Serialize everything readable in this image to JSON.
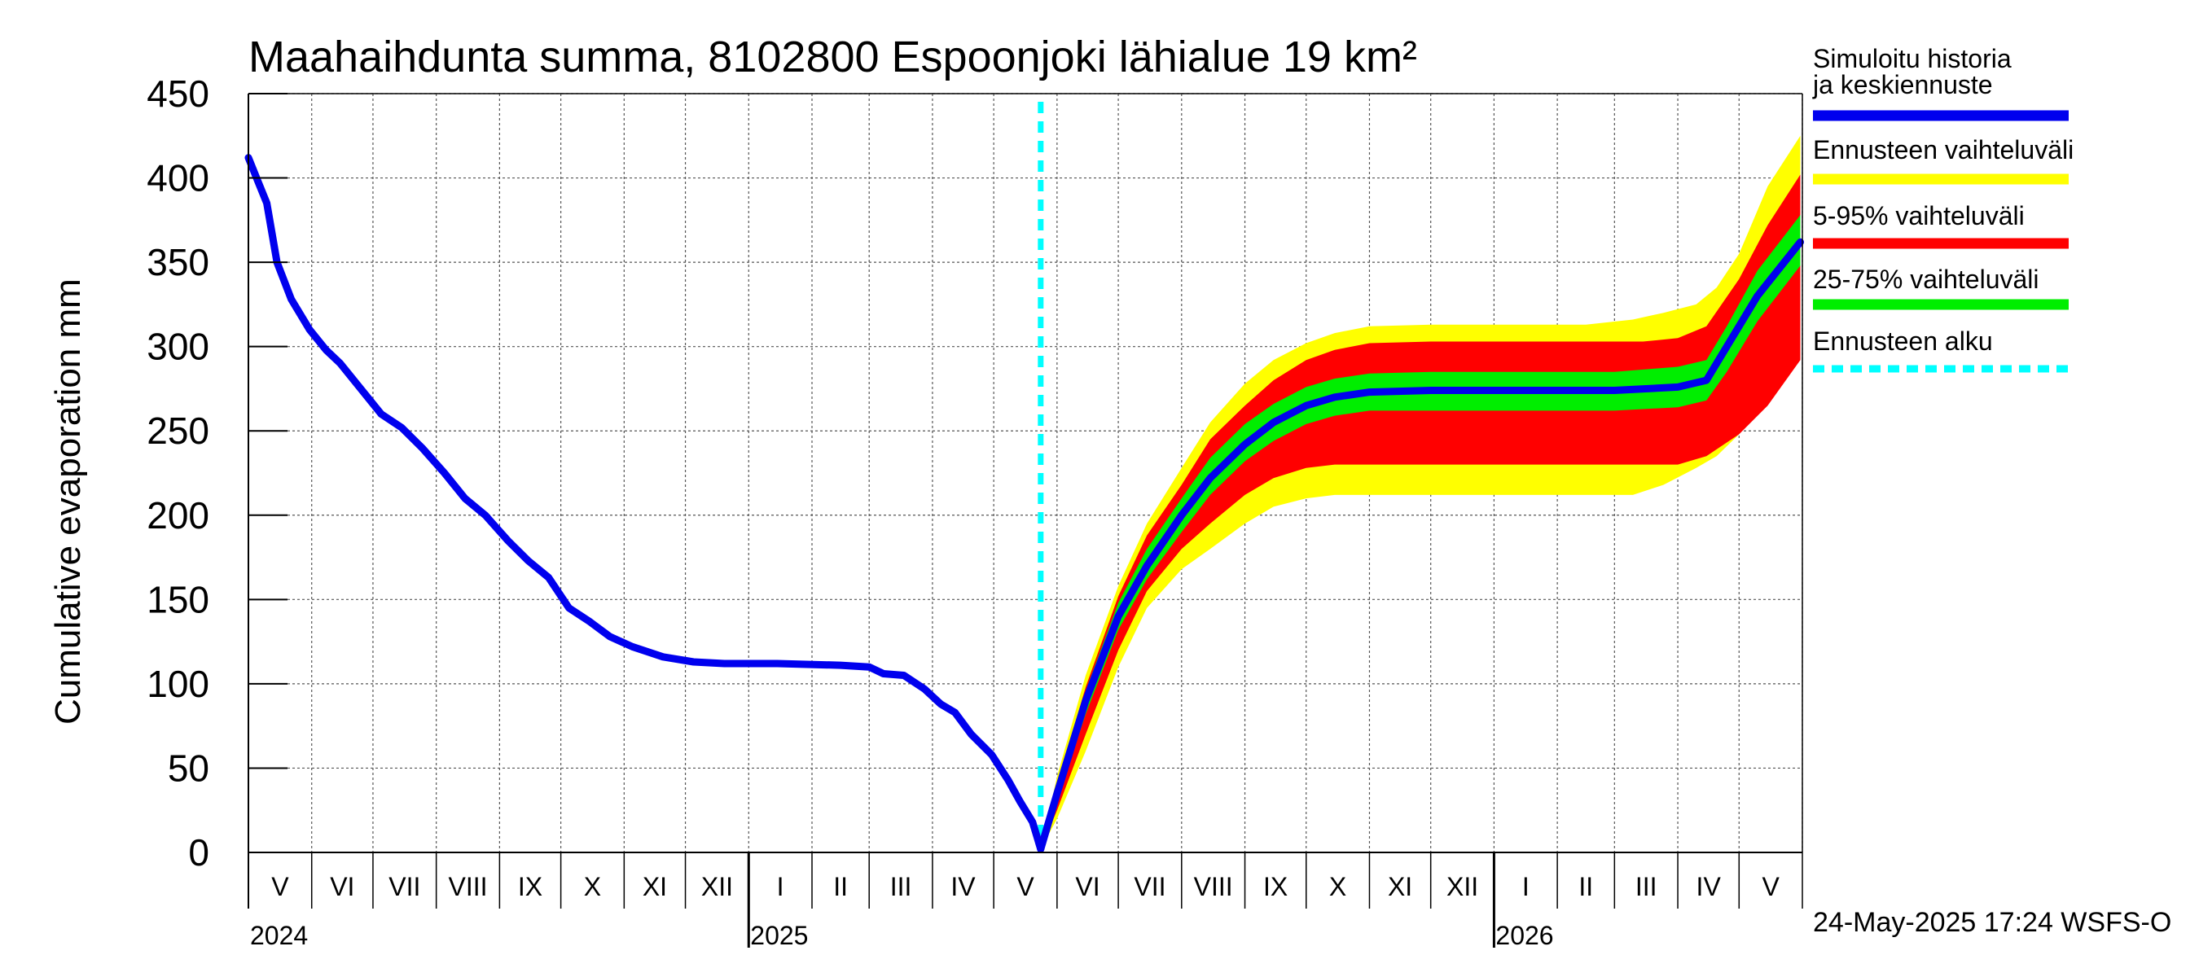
{
  "chart_data": {
    "type": "line",
    "title": "Maahaihdunta summa, 8102800 Espoonjoki lähialue 19 km²",
    "ylabel": "Cumulative evaporation   mm",
    "ylim": [
      0,
      450
    ],
    "yticks": [
      "0",
      "50",
      "100",
      "150",
      "200",
      "250",
      "300",
      "350",
      "400",
      "450"
    ],
    "xlim": [
      "2024-05-01",
      "2026-05-31"
    ],
    "months": [
      "V",
      "VI",
      "VII",
      "VIII",
      "IX",
      "X",
      "XI",
      "XII",
      "I",
      "II",
      "III",
      "IV",
      "V",
      "VI",
      "VII",
      "VIII",
      "IX",
      "X",
      "XI",
      "XII",
      "I",
      "II",
      "III",
      "IV",
      "V"
    ],
    "years": [
      "2024",
      "2025",
      "2026"
    ],
    "forecast_start": "2025-05-24",
    "legend": [
      {
        "label": "Simuloitu historia ja keskiennuste",
        "color": "#0000ee"
      },
      {
        "label": "Ennusteen vaihteluväli",
        "color": "#ffff00"
      },
      {
        "label": "5-95% vaihteluväli",
        "color": "#ff0000"
      },
      {
        "label": "25-75% vaihteluväli",
        "color": "#00ee00"
      },
      {
        "label": "Ennusteen alku",
        "color": "#00ffff"
      }
    ],
    "legend_position": "right",
    "grid": true,
    "series": [
      {
        "name": "Simuloitu historia ja keskiennuste",
        "points": [
          [
            "2024-05-01",
            412
          ],
          [
            "2024-05-05",
            400
          ],
          [
            "2024-05-10",
            385
          ],
          [
            "2024-05-15",
            350
          ],
          [
            "2024-05-22",
            328
          ],
          [
            "2024-05-31",
            310
          ],
          [
            "2024-06-08",
            298
          ],
          [
            "2024-06-15",
            290
          ],
          [
            "2024-06-25",
            275
          ],
          [
            "2024-07-05",
            260
          ],
          [
            "2024-07-15",
            252
          ],
          [
            "2024-07-25",
            240
          ],
          [
            "2024-08-05",
            225
          ],
          [
            "2024-08-15",
            210
          ],
          [
            "2024-08-25",
            200
          ],
          [
            "2024-09-05",
            185
          ],
          [
            "2024-09-15",
            173
          ],
          [
            "2024-09-25",
            163
          ],
          [
            "2024-10-05",
            145
          ],
          [
            "2024-10-15",
            137
          ],
          [
            "2024-10-25",
            128
          ],
          [
            "2024-11-05",
            122
          ],
          [
            "2024-11-20",
            116
          ],
          [
            "2024-12-05",
            113
          ],
          [
            "2024-12-20",
            112
          ],
          [
            "2025-01-15",
            112
          ],
          [
            "2025-02-15",
            111
          ],
          [
            "2025-03-01",
            110
          ],
          [
            "2025-03-08",
            106
          ],
          [
            "2025-03-18",
            105
          ],
          [
            "2025-03-28",
            97
          ],
          [
            "2025-04-05",
            88
          ],
          [
            "2025-04-12",
            83
          ],
          [
            "2025-04-20",
            70
          ],
          [
            "2025-04-30",
            58
          ],
          [
            "2025-05-08",
            43
          ],
          [
            "2025-05-14",
            30
          ],
          [
            "2025-05-20",
            18
          ],
          [
            "2025-05-24",
            2
          ]
        ]
      },
      {
        "name": "Keskiennuste",
        "points": [
          [
            "2025-05-24",
            2
          ],
          [
            "2025-06-01",
            35
          ],
          [
            "2025-06-15",
            90
          ],
          [
            "2025-07-01",
            140
          ],
          [
            "2025-07-15",
            170
          ],
          [
            "2025-08-01",
            200
          ],
          [
            "2025-08-15",
            222
          ],
          [
            "2025-09-01",
            242
          ],
          [
            "2025-09-15",
            255
          ],
          [
            "2025-10-01",
            265
          ],
          [
            "2025-10-15",
            270
          ],
          [
            "2025-11-01",
            273
          ],
          [
            "2025-12-01",
            274
          ],
          [
            "2026-01-01",
            274
          ],
          [
            "2026-03-01",
            274
          ],
          [
            "2026-04-01",
            276
          ],
          [
            "2026-04-15",
            280
          ],
          [
            "2026-04-25",
            300
          ],
          [
            "2026-05-10",
            330
          ],
          [
            "2026-05-31",
            362
          ]
        ]
      }
    ],
    "bands": [
      {
        "name": "Ennusteen vaihteluväli",
        "color": "#ffff00",
        "points": [
          [
            "2025-05-24",
            2,
            2
          ],
          [
            "2025-06-01",
            20,
            45
          ],
          [
            "2025-06-15",
            60,
            105
          ],
          [
            "2025-07-01",
            110,
            158
          ],
          [
            "2025-07-15",
            145,
            195
          ],
          [
            "2025-08-01",
            168,
            228
          ],
          [
            "2025-08-15",
            180,
            255
          ],
          [
            "2025-09-01",
            195,
            278
          ],
          [
            "2025-09-15",
            205,
            292
          ],
          [
            "2025-10-01",
            210,
            302
          ],
          [
            "2025-10-15",
            212,
            308
          ],
          [
            "2025-11-01",
            212,
            312
          ],
          [
            "2025-12-01",
            212,
            313
          ],
          [
            "2026-01-01",
            212,
            313
          ],
          [
            "2026-02-15",
            212,
            313
          ],
          [
            "2026-03-10",
            212,
            316
          ],
          [
            "2026-03-25",
            218,
            320
          ],
          [
            "2026-04-10",
            228,
            325
          ],
          [
            "2026-04-20",
            235,
            335
          ],
          [
            "2026-05-01",
            248,
            355
          ],
          [
            "2026-05-15",
            275,
            395
          ],
          [
            "2026-05-31",
            305,
            425
          ]
        ]
      },
      {
        "name": "5-95% vaihteluväli",
        "color": "#ff0000",
        "points": [
          [
            "2025-05-24",
            2,
            2
          ],
          [
            "2025-06-01",
            25,
            40
          ],
          [
            "2025-06-15",
            70,
            98
          ],
          [
            "2025-07-01",
            120,
            152
          ],
          [
            "2025-07-15",
            155,
            188
          ],
          [
            "2025-08-01",
            180,
            218
          ],
          [
            "2025-08-15",
            195,
            245
          ],
          [
            "2025-09-01",
            212,
            265
          ],
          [
            "2025-09-15",
            222,
            280
          ],
          [
            "2025-10-01",
            228,
            292
          ],
          [
            "2025-10-15",
            230,
            298
          ],
          [
            "2025-11-01",
            230,
            302
          ],
          [
            "2025-12-01",
            230,
            303
          ],
          [
            "2026-01-01",
            230,
            303
          ],
          [
            "2026-03-15",
            230,
            303
          ],
          [
            "2026-04-01",
            230,
            305
          ],
          [
            "2026-04-15",
            235,
            312
          ],
          [
            "2026-05-01",
            248,
            340
          ],
          [
            "2026-05-15",
            265,
            372
          ],
          [
            "2026-05-31",
            292,
            402
          ]
        ]
      },
      {
        "name": "25-75% vaihteluväli",
        "color": "#00ee00",
        "points": [
          [
            "2025-05-24",
            2,
            2
          ],
          [
            "2025-06-01",
            30,
            38
          ],
          [
            "2025-06-15",
            82,
            96
          ],
          [
            "2025-07-01",
            132,
            148
          ],
          [
            "2025-07-15",
            162,
            180
          ],
          [
            "2025-08-01",
            190,
            210
          ],
          [
            "2025-08-15",
            212,
            234
          ],
          [
            "2025-09-01",
            232,
            254
          ],
          [
            "2025-09-15",
            244,
            266
          ],
          [
            "2025-10-01",
            254,
            276
          ],
          [
            "2025-10-15",
            259,
            281
          ],
          [
            "2025-11-01",
            262,
            284
          ],
          [
            "2025-12-01",
            262,
            285
          ],
          [
            "2026-01-01",
            262,
            285
          ],
          [
            "2026-03-01",
            262,
            285
          ],
          [
            "2026-04-01",
            264,
            288
          ],
          [
            "2026-04-15",
            268,
            292
          ],
          [
            "2026-04-25",
            285,
            312
          ],
          [
            "2026-05-10",
            315,
            345
          ],
          [
            "2026-05-31",
            348,
            378
          ]
        ]
      }
    ]
  },
  "timestamp": "24-May-2025 17:24 WSFS-O"
}
